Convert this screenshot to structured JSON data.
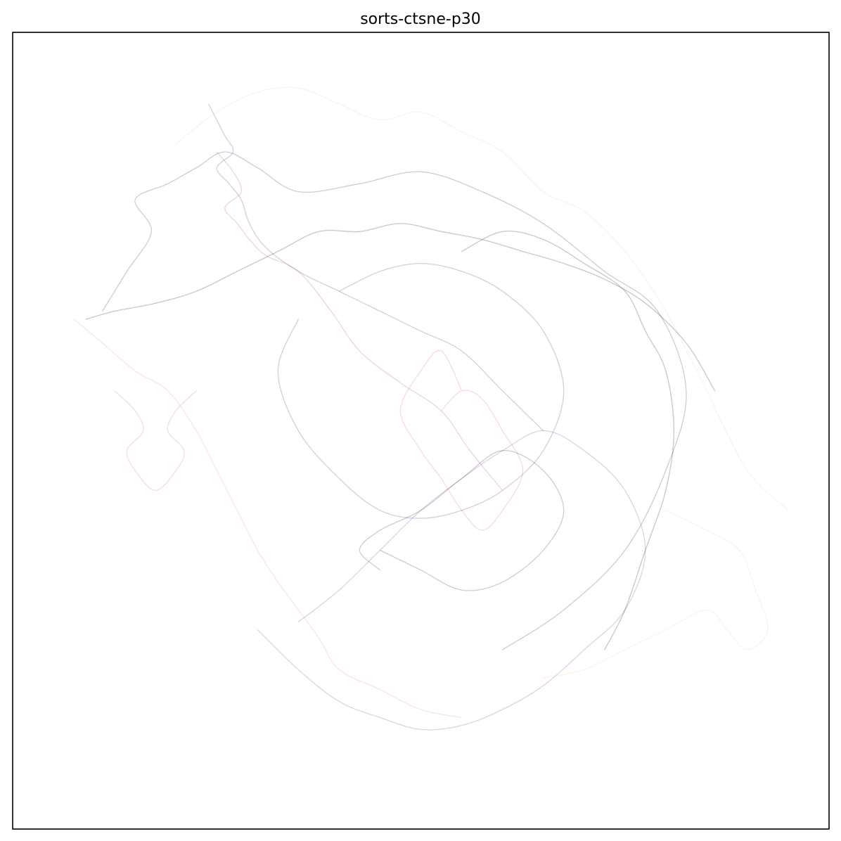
{
  "chart_data": {
    "type": "line",
    "title": "sorts-ctsne-p30",
    "xlabel": "",
    "ylabel": "",
    "xlim": [
      -1,
      1
    ],
    "ylim": [
      -1,
      1
    ],
    "show_ticks": false,
    "grid": false,
    "legend": "none",
    "line_alpha": 0.22,
    "colormap": "magma",
    "colors": [
      "#000004",
      "#1d1147",
      "#51127c",
      "#822681",
      "#b73779",
      "#e75263",
      "#fc8961",
      "#fec287",
      "#fcfdbf"
    ],
    "series": [
      {
        "color": "#1d1147",
        "x": [
          -0.78,
          -0.72,
          -0.66,
          -0.7,
          -0.62,
          -0.55,
          -0.48,
          -0.4,
          -0.3,
          -0.15,
          0.0,
          0.15,
          0.3,
          0.45,
          0.58,
          0.65,
          0.6,
          0.5,
          0.35,
          0.2
        ],
        "y": [
          0.3,
          0.4,
          0.5,
          0.58,
          0.62,
          0.66,
          0.7,
          0.66,
          0.6,
          0.62,
          0.65,
          0.6,
          0.52,
          0.4,
          0.3,
          0.1,
          -0.1,
          -0.3,
          -0.45,
          -0.55
        ]
      },
      {
        "color": "#51127c",
        "x": [
          -0.52,
          -0.5,
          -0.48,
          -0.46,
          -0.5,
          -0.47,
          -0.44,
          -0.42,
          -0.38,
          -0.3,
          -0.2,
          -0.1,
          0.0,
          0.1,
          0.2,
          0.3
        ],
        "y": [
          0.82,
          0.78,
          0.74,
          0.7,
          0.66,
          0.62,
          0.58,
          0.52,
          0.46,
          0.4,
          0.35,
          0.3,
          0.25,
          0.2,
          0.1,
          0.0
        ]
      },
      {
        "color": "#b73779",
        "x": [
          -0.5,
          -0.46,
          -0.44,
          -0.48,
          -0.45,
          -0.42,
          -0.38,
          -0.3,
          -0.22,
          -0.15,
          -0.05,
          0.05,
          0.12,
          0.2
        ],
        "y": [
          0.7,
          0.65,
          0.6,
          0.56,
          0.52,
          0.48,
          0.44,
          0.4,
          0.3,
          0.2,
          0.12,
          0.05,
          -0.05,
          -0.15
        ]
      },
      {
        "color": "#fc8961",
        "x": [
          -0.85,
          -0.78,
          -0.7,
          -0.62,
          -0.55,
          -0.5,
          -0.45,
          -0.4,
          -0.35,
          -0.3,
          -0.25,
          -0.2,
          -0.1,
          0.0,
          0.1
        ],
        "y": [
          0.28,
          0.22,
          0.15,
          0.1,
          0.0,
          -0.1,
          -0.2,
          -0.3,
          -0.38,
          -0.45,
          -0.52,
          -0.6,
          -0.65,
          -0.7,
          -0.72
        ]
      },
      {
        "color": "#fec287",
        "x": [
          -0.6,
          -0.5,
          -0.4,
          -0.3,
          -0.2,
          -0.1,
          0.0,
          0.1,
          0.2,
          0.3,
          0.4,
          0.5,
          0.6,
          0.7,
          0.8,
          0.9
        ],
        "y": [
          0.72,
          0.8,
          0.85,
          0.86,
          0.82,
          0.78,
          0.8,
          0.75,
          0.7,
          0.6,
          0.55,
          0.45,
          0.3,
          0.1,
          -0.1,
          -0.2
        ]
      },
      {
        "color": "#000004",
        "x": [
          -0.82,
          -0.75,
          -0.65,
          -0.55,
          -0.45,
          -0.35,
          -0.25,
          -0.15,
          -0.05,
          0.05,
          0.15,
          0.25,
          0.35,
          0.45,
          0.55,
          0.65,
          0.72
        ],
        "y": [
          0.28,
          0.3,
          0.32,
          0.35,
          0.4,
          0.45,
          0.5,
          0.5,
          0.52,
          0.5,
          0.48,
          0.45,
          0.42,
          0.38,
          0.32,
          0.22,
          0.1
        ]
      },
      {
        "color": "#822681",
        "x": [
          -0.4,
          -0.3,
          -0.2,
          -0.1,
          0.0,
          0.1,
          0.2,
          0.3,
          0.4,
          0.5,
          0.55,
          0.5,
          0.4,
          0.3,
          0.2,
          0.1,
          0.0,
          -0.1,
          -0.2,
          -0.3
        ],
        "y": [
          -0.5,
          -0.6,
          -0.68,
          -0.72,
          -0.75,
          -0.74,
          -0.7,
          -0.64,
          -0.55,
          -0.45,
          -0.3,
          -0.15,
          -0.05,
          0.0,
          -0.05,
          -0.12,
          -0.2,
          -0.3,
          -0.4,
          -0.48
        ]
      },
      {
        "color": "#e75263",
        "x": [
          0.05,
          0.1,
          0.15,
          0.2,
          0.25,
          0.2,
          0.15,
          0.1,
          0.05,
          0.0,
          -0.05,
          0.0,
          0.05,
          0.1
        ],
        "y": [
          0.05,
          0.1,
          0.08,
          0.0,
          -0.1,
          -0.2,
          -0.25,
          -0.2,
          -0.12,
          -0.05,
          0.05,
          0.15,
          0.2,
          0.1
        ]
      },
      {
        "color": "#fec287",
        "x": [
          0.6,
          0.7,
          0.78,
          0.82,
          0.85,
          0.8,
          0.75,
          0.7,
          0.6,
          0.5,
          0.4,
          0.3
        ],
        "y": [
          -0.2,
          -0.25,
          -0.3,
          -0.4,
          -0.5,
          -0.55,
          -0.5,
          -0.45,
          -0.5,
          -0.55,
          -0.6,
          -0.62
        ]
      },
      {
        "color": "#fcfdbf",
        "x": [
          -0.75,
          -0.7,
          -0.65,
          -0.6,
          -0.55,
          -0.5,
          -0.45,
          -0.4,
          -0.35
        ],
        "y": [
          -0.1,
          -0.2,
          -0.3,
          -0.4,
          -0.45,
          -0.5,
          -0.55,
          -0.6,
          -0.65
        ]
      },
      {
        "color": "#51127c",
        "x": [
          -0.2,
          -0.1,
          0.0,
          0.1,
          0.2,
          0.3,
          0.35,
          0.3,
          0.2,
          0.1,
          0.0,
          -0.1,
          -0.2,
          -0.3,
          -0.35,
          -0.3
        ],
        "y": [
          0.35,
          0.4,
          0.42,
          0.4,
          0.35,
          0.25,
          0.1,
          -0.05,
          -0.15,
          -0.2,
          -0.22,
          -0.2,
          -0.12,
          0.0,
          0.15,
          0.28
        ]
      },
      {
        "color": "#1d1147",
        "x": [
          -0.1,
          0.0,
          0.1,
          0.2,
          0.3,
          0.35,
          0.3,
          0.2,
          0.1,
          0.0,
          -0.1,
          -0.15,
          -0.1
        ],
        "y": [
          -0.3,
          -0.35,
          -0.4,
          -0.38,
          -0.3,
          -0.2,
          -0.1,
          -0.05,
          -0.12,
          -0.2,
          -0.25,
          -0.3,
          -0.35
        ]
      },
      {
        "color": "#e75263",
        "x": [
          -0.75,
          -0.7,
          -0.68,
          -0.72,
          -0.7,
          -0.65,
          -0.6,
          -0.58,
          -0.62,
          -0.6,
          -0.55
        ],
        "y": [
          0.1,
          0.05,
          0.0,
          -0.05,
          -0.1,
          -0.15,
          -0.1,
          -0.05,
          0.0,
          0.05,
          0.1
        ]
      },
      {
        "color": "#000004",
        "x": [
          0.1,
          0.2,
          0.3,
          0.4,
          0.5,
          0.55,
          0.6,
          0.62,
          0.6,
          0.55,
          0.5,
          0.45
        ],
        "y": [
          0.45,
          0.5,
          0.48,
          0.42,
          0.35,
          0.25,
          0.15,
          0.0,
          -0.15,
          -0.3,
          -0.45,
          -0.55
        ]
      }
    ]
  }
}
